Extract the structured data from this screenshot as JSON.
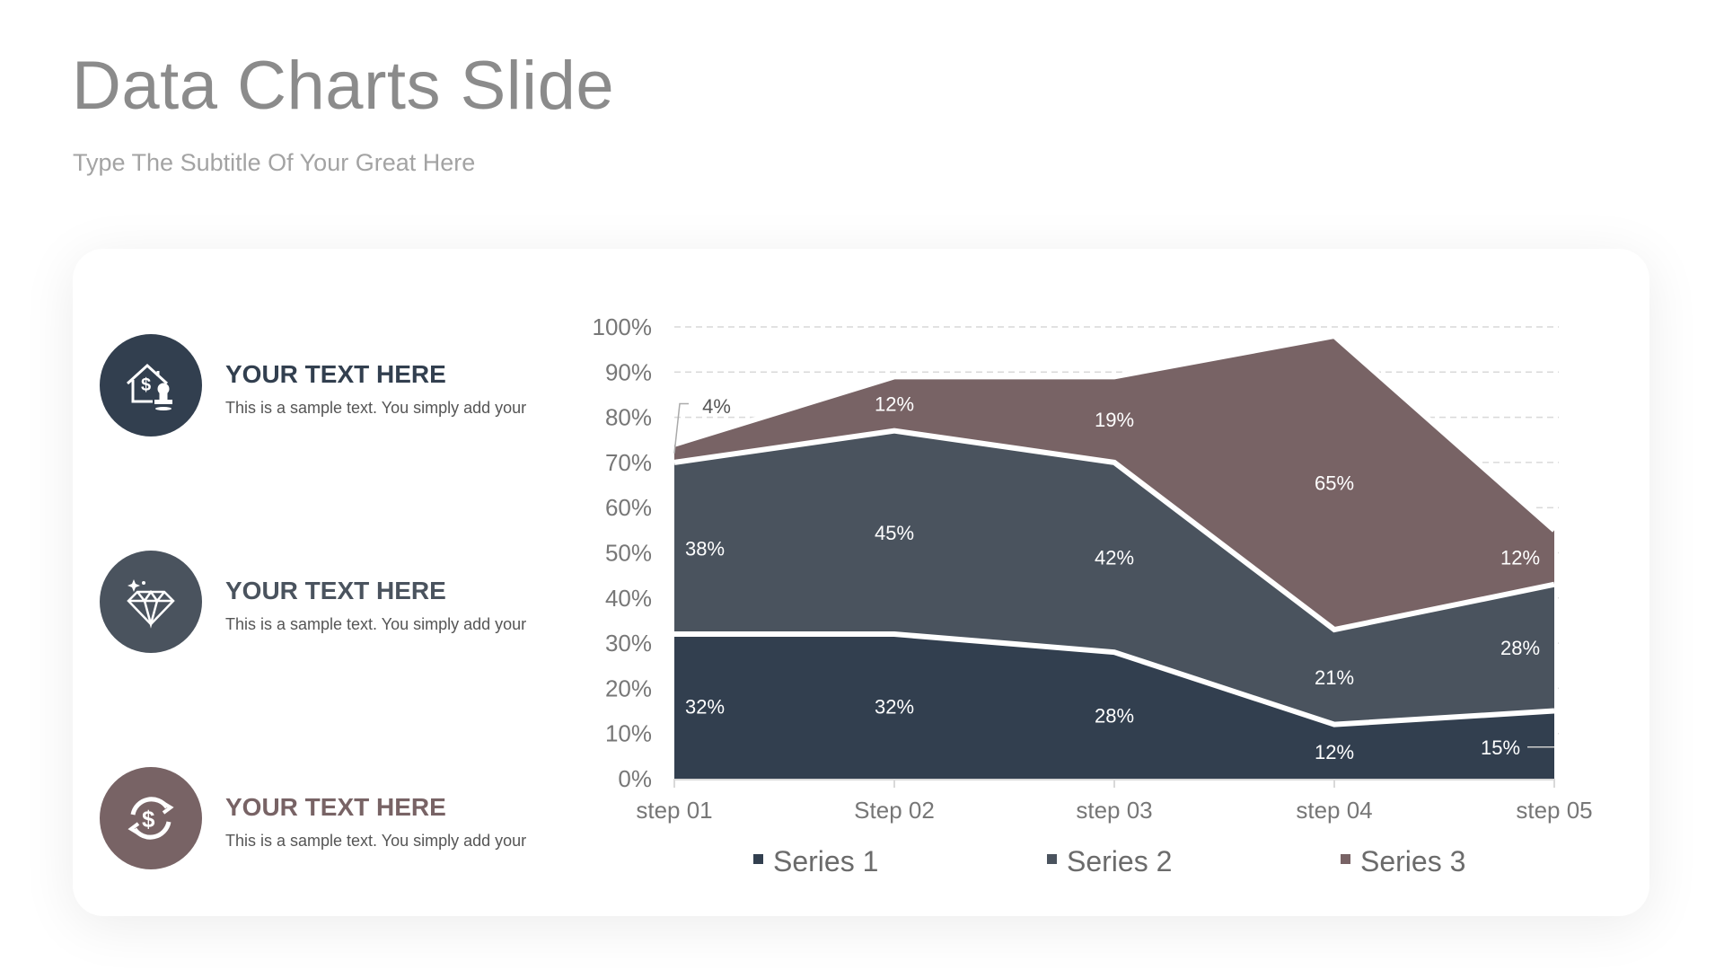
{
  "header": {
    "title": "Data Charts Slide",
    "subtitle": "Type The Subtitle Of Your Great Here"
  },
  "items": [
    {
      "heading": "YOUR TEXT HERE",
      "body": "This is a sample text. You simply add your",
      "icon": "house-dollar-stamp-icon",
      "color": "#323f4f"
    },
    {
      "heading": "YOUR TEXT HERE",
      "body": "This is a sample text. You simply add your",
      "icon": "diamond-icon",
      "color": "#4a535e"
    },
    {
      "heading": "YOUR TEXT HERE",
      "body": "This is a sample text. You simply add your",
      "icon": "dollar-exchange-icon",
      "color": "#786365"
    }
  ],
  "chart_data": {
    "type": "area",
    "stacked": true,
    "categories": [
      "step 01",
      "Step 02",
      "step 03",
      "step 04",
      "step 05"
    ],
    "series": [
      {
        "name": "Series 1",
        "values": [
          32,
          32,
          28,
          12,
          15
        ],
        "labels": [
          "32%",
          "32%",
          "28%",
          "12%",
          "15%"
        ],
        "color": "#323f4f"
      },
      {
        "name": "Series 2",
        "values": [
          38,
          45,
          42,
          21,
          28
        ],
        "labels": [
          "38%",
          "45%",
          "42%",
          "21%",
          "28%"
        ],
        "color": "#4a535e"
      },
      {
        "name": "Series 3",
        "values": [
          4,
          12,
          19,
          65,
          12
        ],
        "labels": [
          "4%",
          "12%",
          "19%",
          "65%",
          "12%"
        ],
        "color": "#786365"
      }
    ],
    "ylim": [
      0,
      100
    ],
    "yticks": [
      "0%",
      "10%",
      "20%",
      "30%",
      "40%",
      "50%",
      "60%",
      "70%",
      "80%",
      "90%",
      "100%"
    ],
    "grid": true,
    "legend": "bottom"
  }
}
